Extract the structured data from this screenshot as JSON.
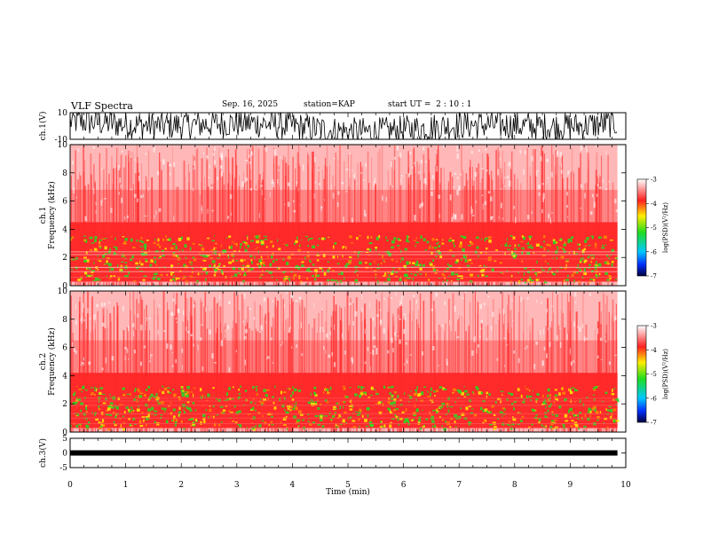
{
  "header": {
    "title": "VLF Spectra",
    "date": "Sep. 16, 2025",
    "station_label": "station=",
    "station": "KAP",
    "start_label": "start  UT =",
    "start_time": "2 : 10 : 1"
  },
  "colors": {
    "spectrogram_base": "#ff2a2a",
    "band_green": "#22dd22",
    "band_yellow": "#ffee00",
    "trace": "#000000"
  },
  "chart_data": [
    {
      "id": "ch1-waveform",
      "type": "line",
      "title": "",
      "ylabel": "ch.1(V)",
      "yticks": [
        "10",
        "-10"
      ],
      "ylim": [
        -10,
        10
      ],
      "xlim": [
        0,
        10
      ],
      "data_extent_min": 9.85,
      "description_of_values": "dense noise waveform clipped near ±10 V"
    },
    {
      "id": "ch1-spectrogram",
      "type": "heatmap",
      "ylabel_line1": "ch.1",
      "ylabel_line2": "Frequency  (kHz)",
      "yticks": [
        "0",
        "2",
        "4",
        "6",
        "8",
        "10"
      ],
      "ylim": [
        0,
        10
      ],
      "xlim": [
        0,
        10
      ],
      "bands": [
        {
          "from_khz": 0.3,
          "to_khz": 3.3,
          "level": "high (-4 to -5)"
        },
        {
          "from_khz": 3.3,
          "to_khz": 10,
          "level": "moderate (-3 to -4)"
        }
      ],
      "colorbar": {
        "label": "log(PSD)(V²/Hz)",
        "ticks": [
          "-3",
          "-4",
          "-5",
          "-6",
          "-7"
        ],
        "range": [
          -7,
          -3
        ]
      }
    },
    {
      "id": "ch2-spectrogram",
      "type": "heatmap",
      "ylabel_line1": "ch.2",
      "ylabel_line2": "Frequency  (kHz)",
      "yticks": [
        "0",
        "2",
        "4",
        "6",
        "8",
        "10"
      ],
      "ylim": [
        0,
        10
      ],
      "xlim": [
        0,
        10
      ],
      "bands": [
        {
          "from_khz": 0.3,
          "to_khz": 3.0,
          "level": "high (-4 to -5)"
        },
        {
          "from_khz": 3.0,
          "to_khz": 10,
          "level": "moderate (-3 to -4)"
        }
      ],
      "colorbar": {
        "label": "log(PSD)(V²/Hz)",
        "ticks": [
          "-3",
          "-4",
          "-5",
          "-6",
          "-7"
        ],
        "range": [
          -7,
          -3
        ]
      }
    },
    {
      "id": "ch3-waveform",
      "type": "line",
      "ylabel": "ch.3(V)",
      "yticks": [
        "5",
        "0",
        "-5"
      ],
      "ylim": [
        -5,
        5
      ],
      "xlim": [
        0,
        10
      ],
      "level_v": 0,
      "xlabel": "Time  (min)",
      "xticks": [
        "0",
        "1",
        "2",
        "3",
        "4",
        "5",
        "6",
        "7",
        "8",
        "9",
        "10"
      ]
    }
  ]
}
